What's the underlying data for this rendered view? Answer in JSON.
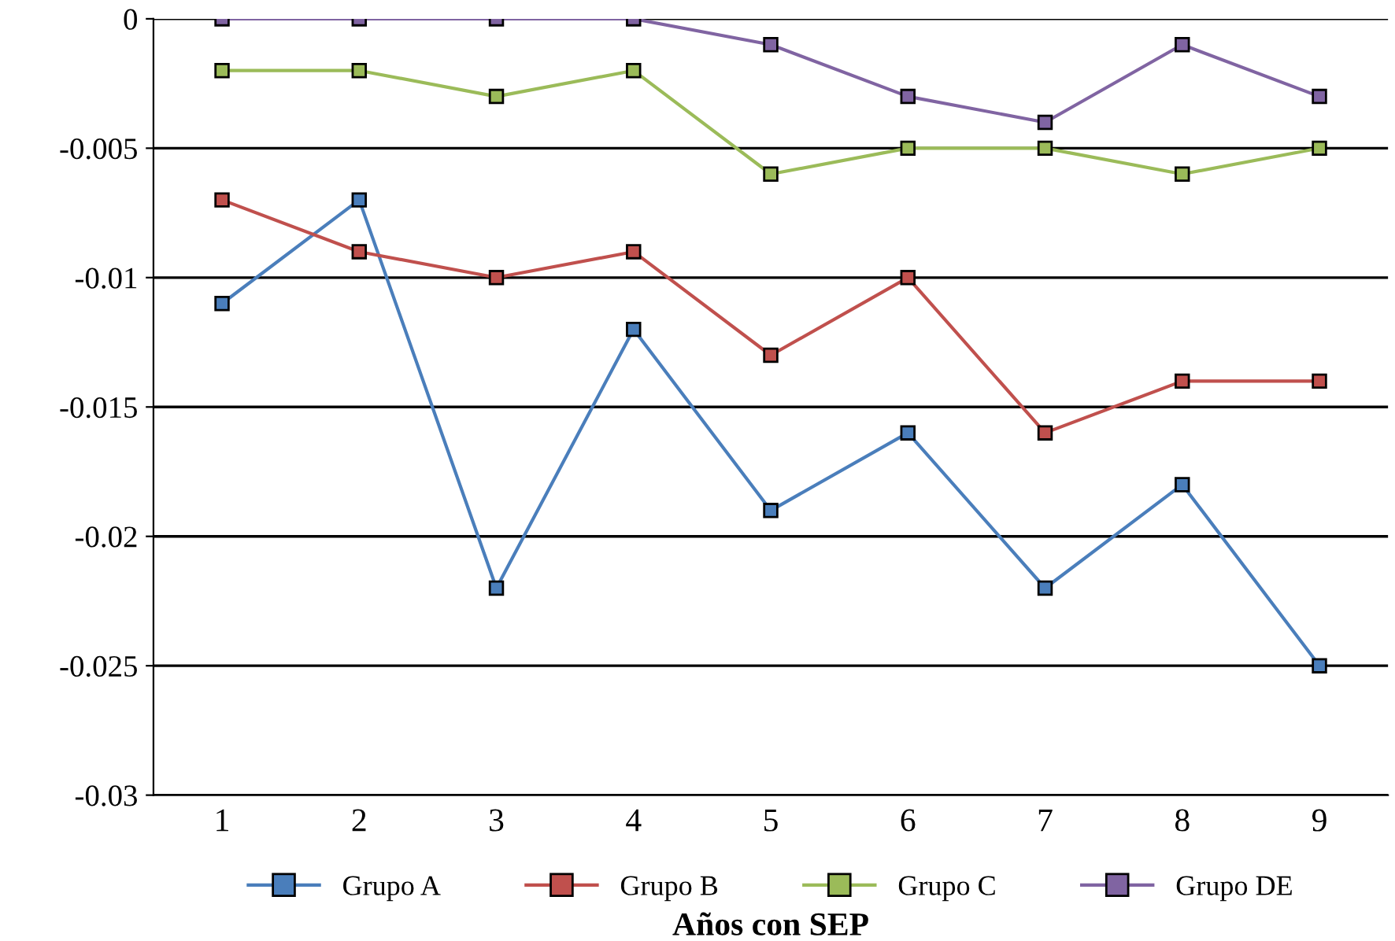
{
  "chart_data": {
    "type": "line",
    "xlabel": "Años con SEP",
    "categories": [
      "1",
      "2",
      "3",
      "4",
      "5",
      "6",
      "7",
      "8",
      "9"
    ],
    "series": [
      {
        "name": "Grupo A",
        "color": "#4a7ebb",
        "values": [
          -0.011,
          -0.007,
          -0.022,
          -0.012,
          -0.019,
          -0.016,
          -0.022,
          -0.018,
          -0.025
        ]
      },
      {
        "name": "Grupo B",
        "color": "#c0504d",
        "values": [
          -0.007,
          -0.009,
          -0.01,
          -0.009,
          -0.013,
          -0.01,
          -0.016,
          -0.014,
          -0.014
        ]
      },
      {
        "name": "Grupo C",
        "color": "#9bbb59",
        "values": [
          -0.002,
          -0.002,
          -0.003,
          -0.002,
          -0.006,
          -0.005,
          -0.005,
          -0.006,
          -0.005
        ]
      },
      {
        "name": "Grupo DE",
        "color": "#8064a2",
        "values": [
          0,
          0,
          0,
          0,
          -0.001,
          -0.003,
          -0.004,
          -0.001,
          -0.003
        ]
      }
    ],
    "ylim": [
      -0.03,
      0
    ],
    "yticks": [
      -0.03,
      -0.025,
      -0.02,
      -0.015,
      -0.01,
      -0.005,
      0
    ],
    "grid": "y",
    "legend": "bottom",
    "marker": "square",
    "line_style": "solid"
  }
}
